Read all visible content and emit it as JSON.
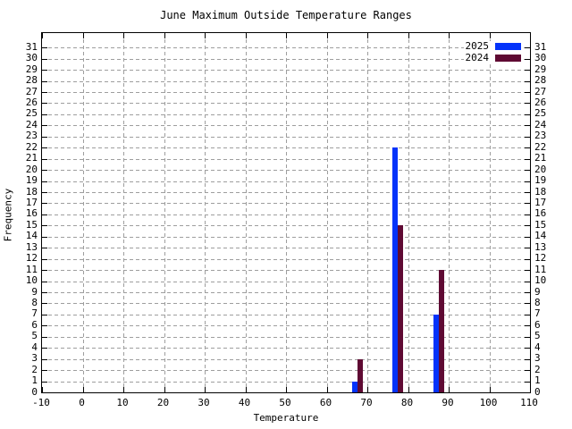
{
  "colors": {
    "background": "#ffffff",
    "frame": "#000000",
    "grid": "#9e9e9e",
    "text": "#000000",
    "series_2025": "#0433fa",
    "series_2024": "#5f0a33"
  },
  "chart_data": {
    "type": "bar",
    "title": "June Maximum Outside Temperature Ranges",
    "xlabel": "Temperature",
    "ylabel": "Frequency",
    "xlim": [
      -10,
      110
    ],
    "ylim": [
      0,
      32.3
    ],
    "grid": true,
    "legend_position": "top-right-inside",
    "x_ticks": [
      -10,
      0,
      10,
      20,
      30,
      40,
      50,
      60,
      70,
      80,
      90,
      100,
      110
    ],
    "y_ticks": [
      0,
      1,
      2,
      3,
      4,
      5,
      6,
      7,
      8,
      9,
      10,
      11,
      12,
      13,
      14,
      15,
      16,
      17,
      18,
      19,
      20,
      21,
      22,
      23,
      24,
      25,
      26,
      27,
      28,
      29,
      30,
      31
    ],
    "bin_centers": [
      67.5,
      77.5,
      87.5
    ],
    "bar_width_x": 1.32,
    "series": [
      {
        "name": "2025",
        "color": "#0433fa",
        "values": [
          1,
          22,
          7
        ],
        "side": "left"
      },
      {
        "name": "2024",
        "color": "#5f0a33",
        "values": [
          3,
          15,
          11
        ],
        "side": "right"
      }
    ]
  }
}
